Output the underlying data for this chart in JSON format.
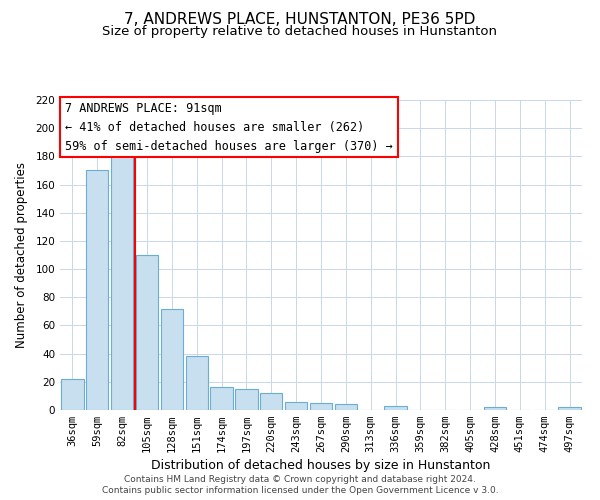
{
  "title": "7, ANDREWS PLACE, HUNSTANTON, PE36 5PD",
  "subtitle": "Size of property relative to detached houses in Hunstanton",
  "xlabel": "Distribution of detached houses by size in Hunstanton",
  "ylabel": "Number of detached properties",
  "bar_labels": [
    "36sqm",
    "59sqm",
    "82sqm",
    "105sqm",
    "128sqm",
    "151sqm",
    "174sqm",
    "197sqm",
    "220sqm",
    "243sqm",
    "267sqm",
    "290sqm",
    "313sqm",
    "336sqm",
    "359sqm",
    "382sqm",
    "405sqm",
    "428sqm",
    "451sqm",
    "474sqm",
    "497sqm"
  ],
  "bar_values": [
    22,
    170,
    180,
    110,
    72,
    38,
    16,
    15,
    12,
    6,
    5,
    4,
    0,
    3,
    0,
    0,
    0,
    2,
    0,
    0,
    2
  ],
  "bar_color": "#c8dff0",
  "bar_edge_color": "#6aaed6",
  "red_line_x": 2.5,
  "ylim": [
    0,
    220
  ],
  "yticks": [
    0,
    20,
    40,
    60,
    80,
    100,
    120,
    140,
    160,
    180,
    200,
    220
  ],
  "annotation_title": "7 ANDREWS PLACE: 91sqm",
  "annotation_line1": "← 41% of detached houses are smaller (262)",
  "annotation_line2": "59% of semi-detached houses are larger (370) →",
  "footnote1": "Contains HM Land Registry data © Crown copyright and database right 2024.",
  "footnote2": "Contains public sector information licensed under the Open Government Licence v 3.0.",
  "title_fontsize": 11,
  "subtitle_fontsize": 9.5,
  "xlabel_fontsize": 9,
  "ylabel_fontsize": 8.5,
  "tick_fontsize": 7.5,
  "annotation_fontsize": 8.5,
  "footnote_fontsize": 6.5,
  "background_color": "#ffffff",
  "grid_color": "#c8d8ea"
}
